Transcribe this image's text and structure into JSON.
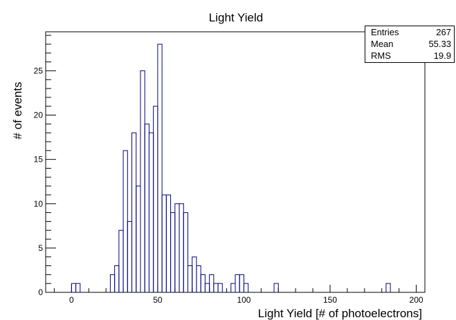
{
  "chart_data": {
    "type": "histogram",
    "title": "Light Yield",
    "xlabel": "Light Yield [# of photoelectrons]",
    "ylabel": "# of events",
    "xlim": [
      -15,
      205
    ],
    "ylim": [
      0,
      29.4
    ],
    "bin_width": 2.5,
    "x_ticks": [
      0,
      50,
      100,
      150,
      200
    ],
    "x_tick_labels": [
      "0",
      "50",
      "100",
      "150",
      "200"
    ],
    "y_ticks": [
      0,
      5,
      10,
      15,
      20,
      25
    ],
    "y_tick_labels": [
      "0",
      "5",
      "10",
      "15",
      "20",
      "25"
    ],
    "bins": [
      {
        "x": 0,
        "count": 1
      },
      {
        "x": 2.5,
        "count": 1
      },
      {
        "x": 22.5,
        "count": 2
      },
      {
        "x": 25,
        "count": 3
      },
      {
        "x": 27.5,
        "count": 7
      },
      {
        "x": 30,
        "count": 16
      },
      {
        "x": 32.5,
        "count": 8
      },
      {
        "x": 35,
        "count": 18
      },
      {
        "x": 37.5,
        "count": 12
      },
      {
        "x": 40,
        "count": 25
      },
      {
        "x": 42.5,
        "count": 19
      },
      {
        "x": 45,
        "count": 18
      },
      {
        "x": 47.5,
        "count": 21
      },
      {
        "x": 50,
        "count": 28
      },
      {
        "x": 52.5,
        "count": 11
      },
      {
        "x": 55,
        "count": 11
      },
      {
        "x": 57.5,
        "count": 9
      },
      {
        "x": 60,
        "count": 10
      },
      {
        "x": 62.5,
        "count": 10
      },
      {
        "x": 65,
        "count": 9
      },
      {
        "x": 67.5,
        "count": 3
      },
      {
        "x": 70,
        "count": 4
      },
      {
        "x": 72.5,
        "count": 3
      },
      {
        "x": 75,
        "count": 2
      },
      {
        "x": 77.5,
        "count": 1
      },
      {
        "x": 80,
        "count": 2
      },
      {
        "x": 82.5,
        "count": 1
      },
      {
        "x": 85,
        "count": 1
      },
      {
        "x": 92.5,
        "count": 1
      },
      {
        "x": 95,
        "count": 2
      },
      {
        "x": 97.5,
        "count": 2
      },
      {
        "x": 100,
        "count": 1
      },
      {
        "x": 117.5,
        "count": 1
      },
      {
        "x": 182.5,
        "count": 1
      }
    ],
    "line_color": "#00007f",
    "stats": {
      "entries_label": "Entries",
      "entries": "267",
      "mean_label": "Mean",
      "mean": "55.33",
      "rms_label": "RMS",
      "rms": "19.9"
    }
  }
}
